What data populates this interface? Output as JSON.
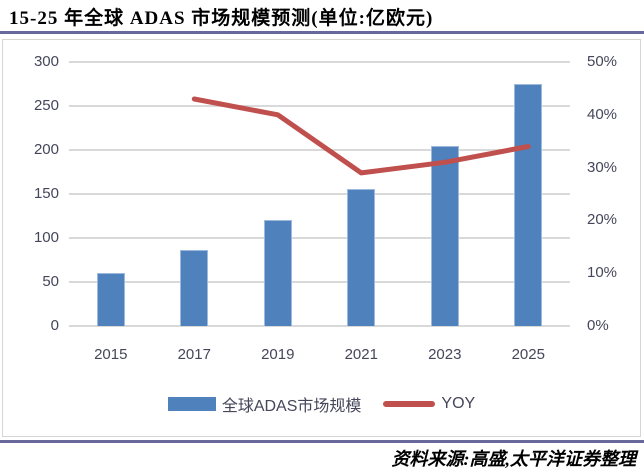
{
  "title": "15-25 年全球 ADAS 市场规模预测(单位:亿欧元)",
  "source_note": "资料来源:高盛,太平洋证券整理",
  "legend": {
    "items": [
      {
        "label": "全球ADAS市场规模",
        "marker": "bar-swatch",
        "color": "#4F81BD"
      },
      {
        "label": "YOY",
        "marker": "line-swatch",
        "color": "#C0504D"
      }
    ]
  },
  "chart_data": {
    "type": "bar",
    "subtype": "combo-bar-line-dual-axis",
    "title": "15-25 年全球 ADAS 市场规模预测(单位:亿欧元)",
    "categories": [
      "2015",
      "2017",
      "2019",
      "2021",
      "2023",
      "2025"
    ],
    "series": [
      {
        "name": "全球ADAS市场规模",
        "type": "bar",
        "axis": "left",
        "color": "#4F81BD",
        "values": [
          60,
          86,
          121,
          156,
          204,
          275
        ]
      },
      {
        "name": "YOY",
        "type": "line",
        "axis": "right",
        "color": "#C0504D",
        "unit": "%",
        "values": [
          null,
          43,
          40,
          29,
          31,
          34
        ]
      }
    ],
    "left_axis": {
      "min": 0,
      "max": 300,
      "step": 50,
      "ticks": [
        "0",
        "50",
        "100",
        "150",
        "200",
        "250",
        "300"
      ]
    },
    "right_axis": {
      "min": 0,
      "max": 50,
      "step": 10,
      "ticks": [
        "0%",
        "10%",
        "20%",
        "30%",
        "40%",
        "50%"
      ]
    },
    "grid": true,
    "legend_position": "bottom"
  },
  "colors": {
    "bar_fill": "#4F81BD",
    "bar_border": "#9DB9DC",
    "line": "#C0504D",
    "gridline": "#D9D9D9",
    "axis_text": "#45465A",
    "divider": "#68689A",
    "frame_border": "#D5D5D5",
    "title_text": "#000000"
  }
}
